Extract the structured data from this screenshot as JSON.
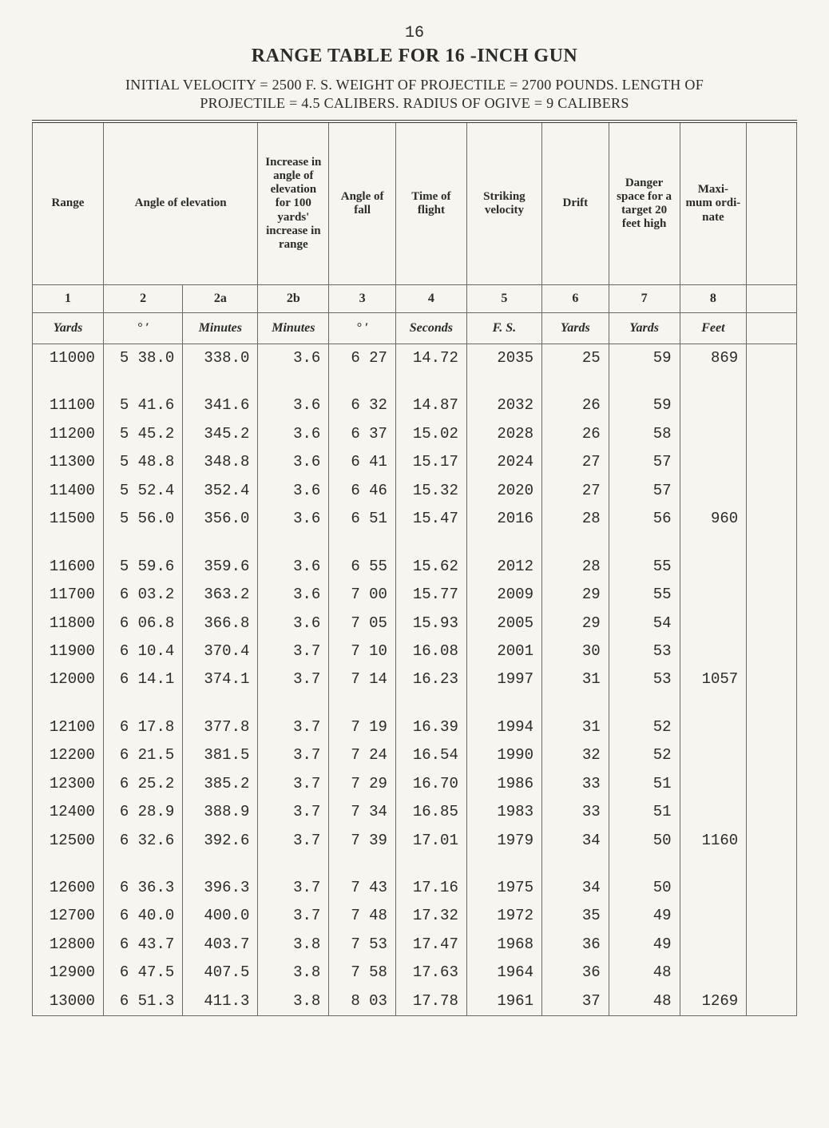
{
  "page_number": "16",
  "title": "RANGE TABLE FOR  16 -INCH GUN",
  "subtitle_line1": "INITIAL VELOCITY = 2500 F. S. WEIGHT OF PROJECTILE = 2700 POUNDS. LENGTH OF",
  "subtitle_line2": "PROJECTILE = 4.5 CALIBERS. RADIUS OF OGIVE = 9  CALIBERS",
  "columns": {
    "labels": [
      "Range",
      "Angle of elevation",
      "Increase in angle of elevation for 100 yards' increase in range",
      "Angle of fall",
      "Time of flight",
      "Striking velocity",
      "Drift",
      "Danger space for a target 20 feet high",
      "Maxi- mum ordi- nate",
      ""
    ],
    "numbers": [
      "1",
      "2",
      "2a",
      "2b",
      "3",
      "4",
      "5",
      "6",
      "7",
      "8",
      ""
    ],
    "units": [
      "Yards",
      "°    ′",
      "Minutes",
      "Minutes",
      "°   ′",
      "Seconds",
      "F. S.",
      "Yards",
      "Yards",
      "Feet",
      ""
    ]
  },
  "rows": [
    [
      "11000",
      "5 38.0",
      "338.0",
      "3.6",
      "6 27",
      "14.72",
      "2035",
      "25",
      "59",
      "869",
      ""
    ],
    null,
    [
      "11100",
      "5 41.6",
      "341.6",
      "3.6",
      "6 32",
      "14.87",
      "2032",
      "26",
      "59",
      "",
      ""
    ],
    [
      "11200",
      "5 45.2",
      "345.2",
      "3.6",
      "6 37",
      "15.02",
      "2028",
      "26",
      "58",
      "",
      ""
    ],
    [
      "11300",
      "5 48.8",
      "348.8",
      "3.6",
      "6 41",
      "15.17",
      "2024",
      "27",
      "57",
      "",
      ""
    ],
    [
      "11400",
      "5 52.4",
      "352.4",
      "3.6",
      "6 46",
      "15.32",
      "2020",
      "27",
      "57",
      "",
      ""
    ],
    [
      "11500",
      "5 56.0",
      "356.0",
      "3.6",
      "6 51",
      "15.47",
      "2016",
      "28",
      "56",
      "960",
      ""
    ],
    null,
    [
      "11600",
      "5 59.6",
      "359.6",
      "3.6",
      "6 55",
      "15.62",
      "2012",
      "28",
      "55",
      "",
      ""
    ],
    [
      "11700",
      "6 03.2",
      "363.2",
      "3.6",
      "7 00",
      "15.77",
      "2009",
      "29",
      "55",
      "",
      ""
    ],
    [
      "11800",
      "6 06.8",
      "366.8",
      "3.6",
      "7 05",
      "15.93",
      "2005",
      "29",
      "54",
      "",
      ""
    ],
    [
      "11900",
      "6 10.4",
      "370.4",
      "3.7",
      "7 10",
      "16.08",
      "2001",
      "30",
      "53",
      "",
      ""
    ],
    [
      "12000",
      "6 14.1",
      "374.1",
      "3.7",
      "7 14",
      "16.23",
      "1997",
      "31",
      "53",
      "1057",
      ""
    ],
    null,
    [
      "12100",
      "6 17.8",
      "377.8",
      "3.7",
      "7 19",
      "16.39",
      "1994",
      "31",
      "52",
      "",
      ""
    ],
    [
      "12200",
      "6 21.5",
      "381.5",
      "3.7",
      "7 24",
      "16.54",
      "1990",
      "32",
      "52",
      "",
      ""
    ],
    [
      "12300",
      "6 25.2",
      "385.2",
      "3.7",
      "7 29",
      "16.70",
      "1986",
      "33",
      "51",
      "",
      ""
    ],
    [
      "12400",
      "6 28.9",
      "388.9",
      "3.7",
      "7 34",
      "16.85",
      "1983",
      "33",
      "51",
      "",
      ""
    ],
    [
      "12500",
      "6 32.6",
      "392.6",
      "3.7",
      "7 39",
      "17.01",
      "1979",
      "34",
      "50",
      "1160",
      ""
    ],
    null,
    [
      "12600",
      "6 36.3",
      "396.3",
      "3.7",
      "7 43",
      "17.16",
      "1975",
      "34",
      "50",
      "",
      ""
    ],
    [
      "12700",
      "6 40.0",
      "400.0",
      "3.7",
      "7 48",
      "17.32",
      "1972",
      "35",
      "49",
      "",
      ""
    ],
    [
      "12800",
      "6 43.7",
      "403.7",
      "3.8",
      "7 53",
      "17.47",
      "1968",
      "36",
      "49",
      "",
      ""
    ],
    [
      "12900",
      "6 47.5",
      "407.5",
      "3.8",
      "7 58",
      "17.63",
      "1964",
      "36",
      "48",
      "",
      ""
    ],
    [
      "13000",
      "6 51.3",
      "411.3",
      "3.8",
      "8 03",
      "17.78",
      "1961",
      "37",
      "48",
      "1269",
      ""
    ]
  ]
}
